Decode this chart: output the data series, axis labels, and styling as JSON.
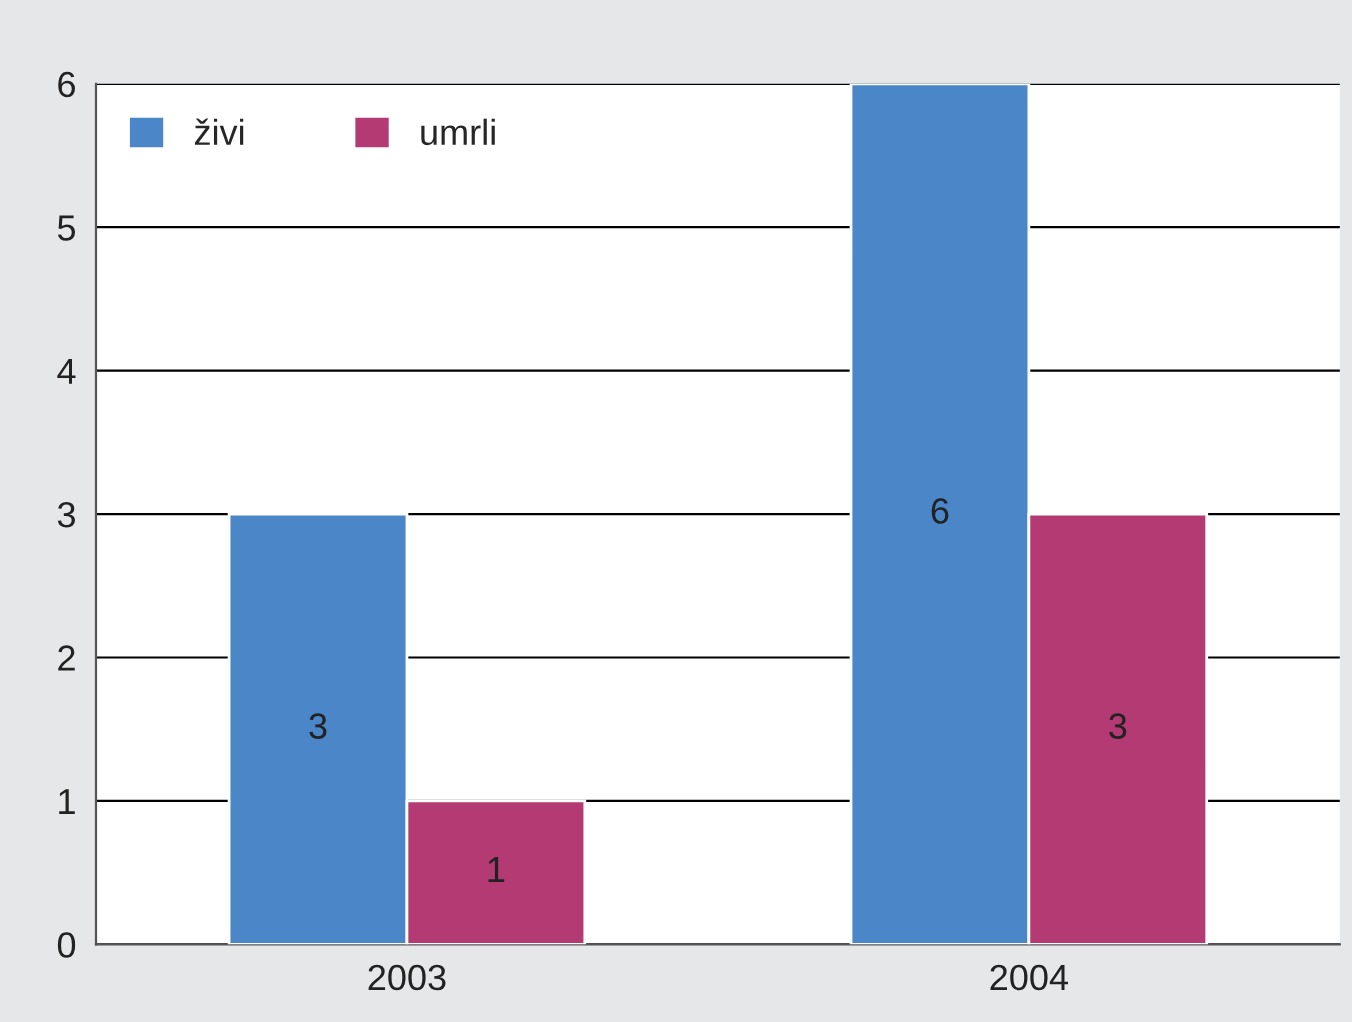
{
  "chart_data": {
    "type": "bar",
    "categories": [
      "2003",
      "2004"
    ],
    "series": [
      {
        "name": "živi",
        "color": "#4a86c8",
        "values": [
          3,
          6
        ]
      },
      {
        "name": "umrli",
        "color": "#b33a72",
        "values": [
          1,
          3
        ]
      }
    ],
    "ylim": [
      0,
      6
    ],
    "yticks": [
      0,
      1,
      2,
      3,
      4,
      5,
      6
    ],
    "grid": "y",
    "legend": "top left",
    "data_labels": true
  }
}
